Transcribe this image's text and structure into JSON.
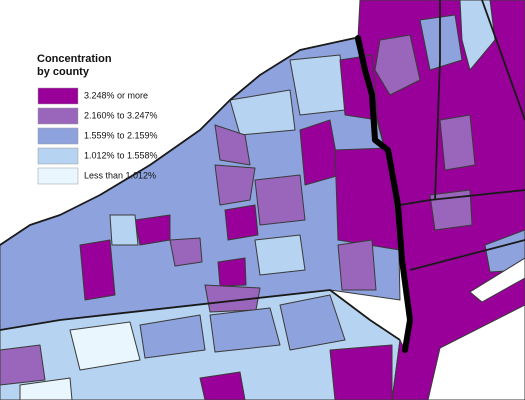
{
  "legend": {
    "title": [
      "Concentration",
      "by county"
    ],
    "items": [
      {
        "label": "3.248% or more",
        "color": "#990099"
      },
      {
        "label": "2.160% to 3.247%",
        "color": "#9966bb"
      },
      {
        "label": "1.559% to 2.159%",
        "color": "#8ea3dd"
      },
      {
        "label": "1.012% to 1.558%",
        "color": "#b6d3f1"
      },
      {
        "label": "Less than 1.012%",
        "color": "#e9f6fd"
      }
    ]
  }
}
